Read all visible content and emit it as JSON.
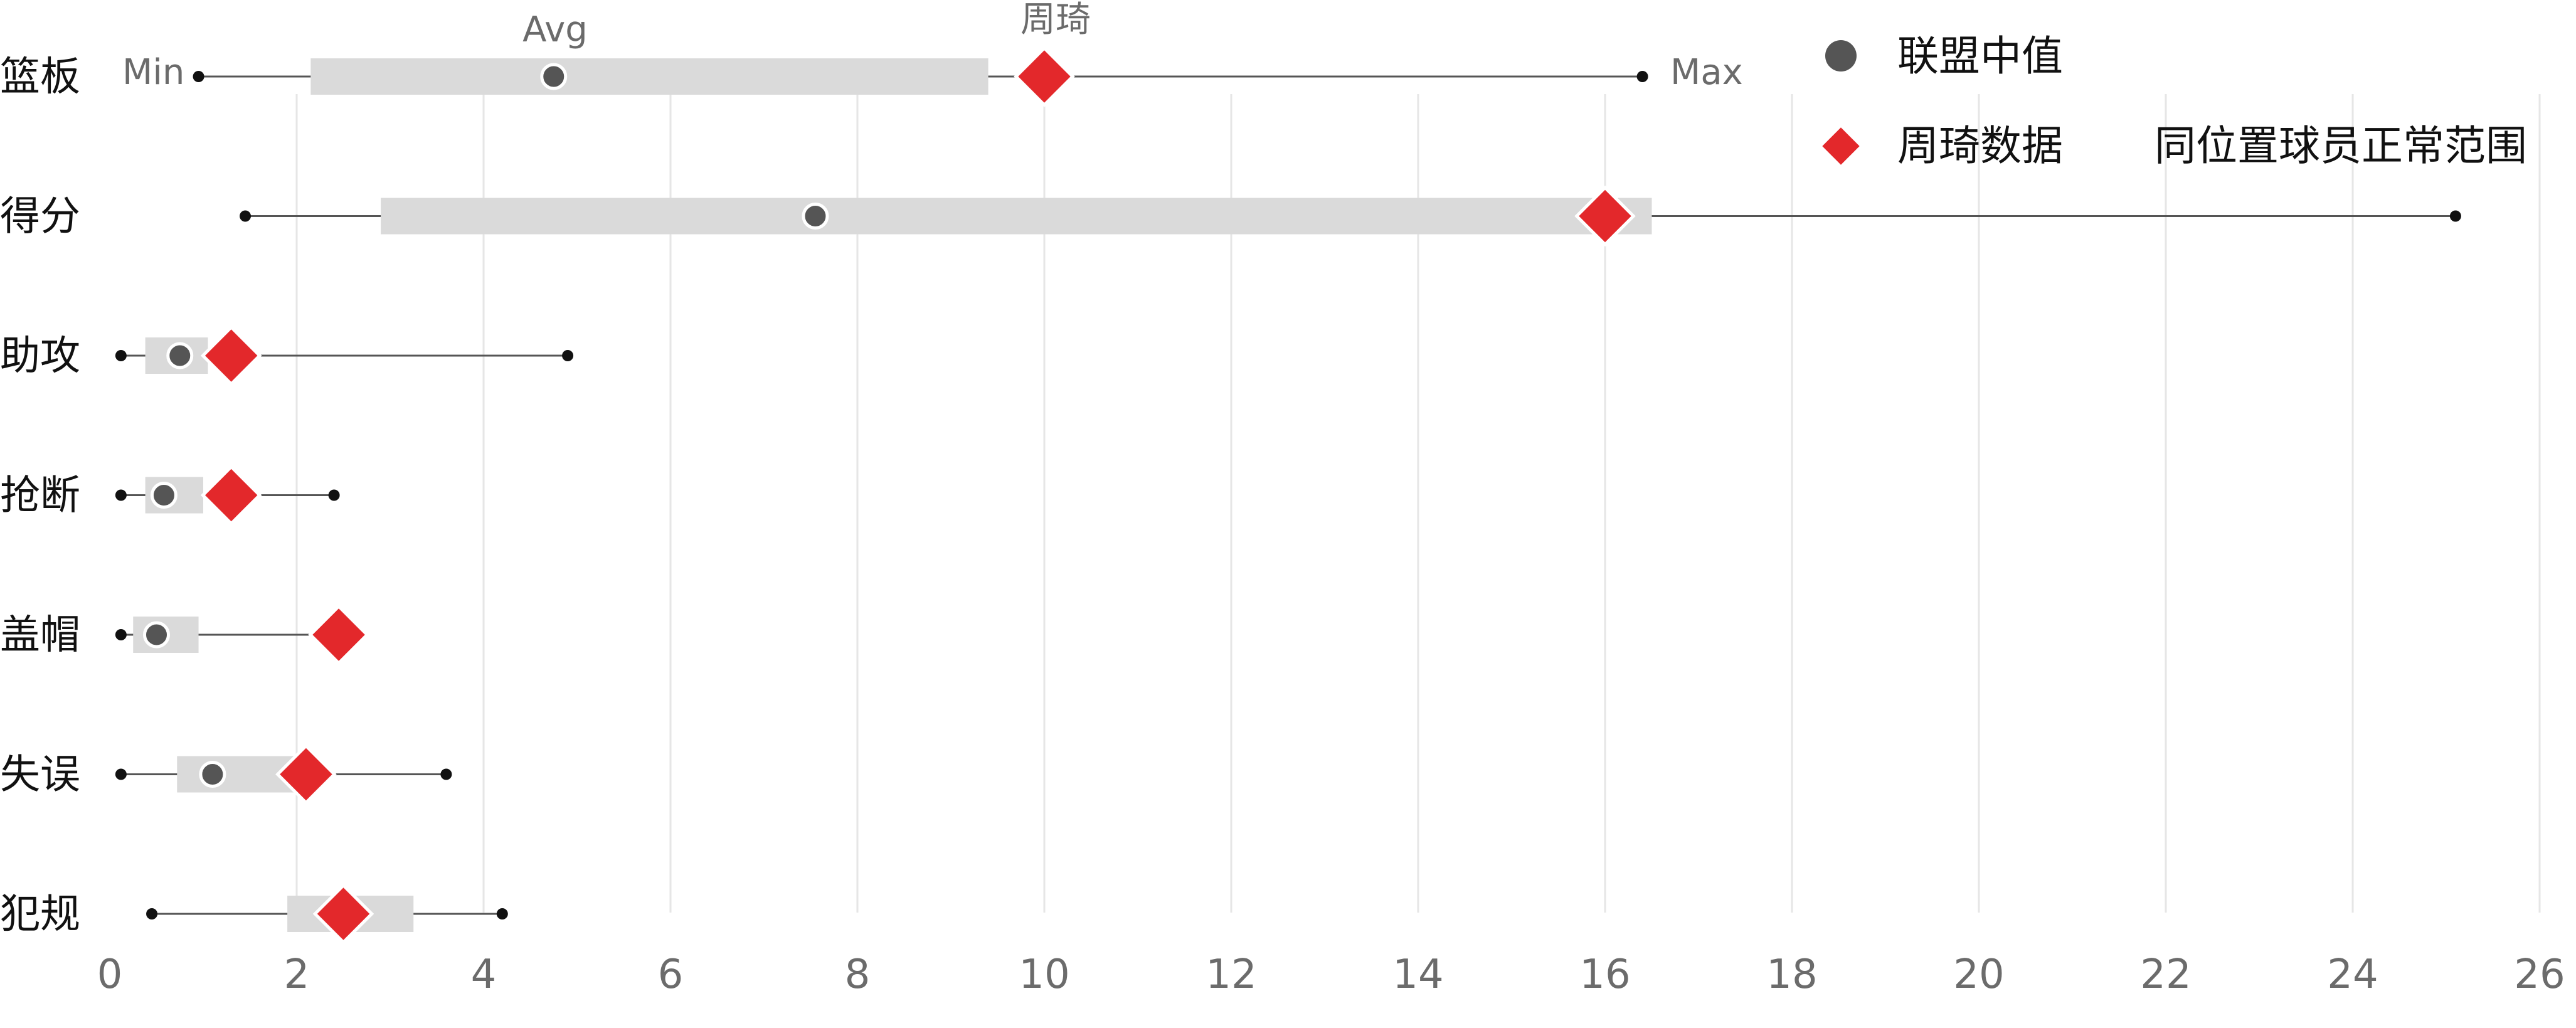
{
  "chart_data": {
    "type": "range-dot",
    "title": "",
    "xlabel": "",
    "ylabel": "",
    "xlim": [
      0,
      26
    ],
    "x_ticks": [
      0,
      2,
      4,
      6,
      8,
      10,
      12,
      14,
      16,
      18,
      20,
      22,
      24,
      26
    ],
    "grid": "vertical",
    "categories": [
      "篮板",
      "得分",
      "助攻",
      "抢断",
      "盖帽",
      "失误",
      "犯规"
    ],
    "rows": [
      {
        "label": "篮板",
        "min": 0.95,
        "q1": 2.15,
        "q3": 9.4,
        "max": 16.4,
        "median": 4.75,
        "player": 10.0
      },
      {
        "label": "得分",
        "min": 1.45,
        "q1": 2.9,
        "q3": 16.5,
        "max": 25.1,
        "median": 7.55,
        "player": 16.0
      },
      {
        "label": "助攻",
        "min": 0.12,
        "q1": 0.38,
        "q3": 1.05,
        "max": 4.9,
        "median": 0.75,
        "player": 1.3
      },
      {
        "label": "抢断",
        "min": 0.12,
        "q1": 0.38,
        "q3": 1.0,
        "max": 2.4,
        "median": 0.58,
        "player": 1.3
      },
      {
        "label": "盖帽",
        "min": 0.12,
        "q1": 0.25,
        "q3": 0.95,
        "max": 2.45,
        "median": 0.5,
        "player": 2.45
      },
      {
        "label": "失误",
        "min": 0.12,
        "q1": 0.72,
        "q3": 2.1,
        "max": 3.6,
        "median": 1.1,
        "player": 2.1
      },
      {
        "label": "犯规",
        "min": 0.45,
        "q1": 1.9,
        "q3": 3.25,
        "max": 4.2,
        "median": 2.5,
        "player": 2.5
      }
    ],
    "annotations": {
      "min_label": "Min",
      "max_label": "Max",
      "avg_label": "Avg",
      "player_label": "周琦"
    },
    "legend": {
      "position": "top-right",
      "median": "联盟中值",
      "player": "周琦数据",
      "range": "同位置球员正常范围"
    },
    "colors": {
      "player": "#e3282b",
      "median": "#555555",
      "range_box": "#dadada",
      "whisker": "#555555",
      "endpoint": "#111111",
      "grid": "#e6e6e6",
      "tick_text": "#6b6b6b",
      "label_text": "#111111"
    }
  }
}
